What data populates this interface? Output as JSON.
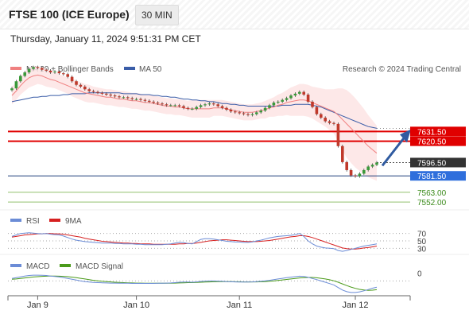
{
  "header": {
    "title": "FTSE 100 (ICE Europe)",
    "interval": "30 MIN"
  },
  "timestamp": "Thursday, January 11, 2024 9:51:31 PM CET",
  "credit": "Research © 2024 Trading Central",
  "colors": {
    "ma20": "#f08080",
    "ma50": "#3a5da8",
    "bands": "#fde4e4",
    "resistance": "#e00000",
    "support": "#62a830",
    "pivot": "#1f3f7a",
    "up_candle": "#3a9a3a",
    "down_candle": "#c0392b",
    "rsi": "#6b8cd6",
    "rsi_ma": "#d62020",
    "macd": "#6b8cd6",
    "macd_signal": "#4a9a1a",
    "arrow": "#2f5aa0"
  },
  "chart_data": [
    {
      "type": "candlestick",
      "legend": [
        "MA 20 + Bollinger Bands",
        "MA 50"
      ],
      "x_ticks": [
        "Jan 9",
        "Jan 10",
        "Jan 11",
        "Jan 12"
      ],
      "ylim": [
        7545,
        7690
      ],
      "current_price": "7596.50",
      "levels": [
        {
          "label": "7631.50",
          "value": 7631.5,
          "kind": "resistance"
        },
        {
          "label": "7620.50",
          "value": 7620.5,
          "kind": "resistance"
        },
        {
          "label": "7596.50",
          "value": 7596.5,
          "kind": "last"
        },
        {
          "label": "7581.50",
          "value": 7581.5,
          "kind": "pivot"
        },
        {
          "label": "7563.00",
          "value": 7563.0,
          "kind": "support"
        },
        {
          "label": "7552.00",
          "value": 7552.0,
          "kind": "support"
        }
      ],
      "closes": [
        7680,
        7688,
        7694,
        7698,
        7702,
        7704,
        7703,
        7701,
        7700,
        7698,
        7699,
        7697,
        7696,
        7693,
        7688,
        7684,
        7682,
        7679,
        7677,
        7676,
        7675,
        7674,
        7673,
        7672,
        7671,
        7670,
        7670,
        7669,
        7668,
        7668,
        7667,
        7666,
        7665,
        7664,
        7663,
        7662,
        7661,
        7661,
        7661,
        7660,
        7658,
        7657,
        7657,
        7659,
        7661,
        7662,
        7663,
        7662,
        7660,
        7658,
        7656,
        7654,
        7653,
        7652,
        7651,
        7650,
        7651,
        7653,
        7655,
        7658,
        7661,
        7664,
        7665,
        7667,
        7669,
        7672,
        7674,
        7676,
        7673,
        7665,
        7659,
        7651,
        7647,
        7643,
        7641,
        7640,
        7615,
        7597,
        7588,
        7582,
        7581,
        7584,
        7588,
        7592,
        7594,
        7596.5
      ],
      "ma20": [
        7672,
        7677,
        7683,
        7688,
        7692,
        7694,
        7695,
        7694,
        7692,
        7690,
        7689,
        7687,
        7685,
        7683,
        7681,
        7679,
        7677,
        7675,
        7674,
        7673,
        7672,
        7671,
        7670,
        7670,
        7669,
        7668,
        7668,
        7667,
        7666,
        7666,
        7665,
        7664,
        7664,
        7663,
        7662,
        7661,
        7660,
        7660,
        7659,
        7659,
        7658,
        7657,
        7657,
        7657,
        7657,
        7657,
        7657,
        7658,
        7658,
        7658,
        7657,
        7656,
        7655,
        7654,
        7653,
        7653,
        7653,
        7654,
        7655,
        7656,
        7658,
        7659,
        7661,
        7662,
        7664,
        7665,
        7666,
        7667,
        7667,
        7666,
        7664,
        7662,
        7660,
        7658,
        7656,
        7654,
        7650,
        7645,
        7640,
        7635,
        7630,
        7625,
        7620,
        7615,
        7611,
        7607
      ],
      "ma50": [
        7665,
        7666,
        7667,
        7668,
        7669,
        7670,
        7670,
        7671,
        7671,
        7672,
        7672,
        7672,
        7673,
        7673,
        7674,
        7674,
        7674,
        7674,
        7675,
        7675,
        7675,
        7675,
        7675,
        7675,
        7675,
        7675,
        7674,
        7674,
        7674,
        7674,
        7673,
        7673,
        7673,
        7672,
        7672,
        7671,
        7671,
        7670,
        7670,
        7669,
        7668,
        7668,
        7667,
        7667,
        7666,
        7666,
        7665,
        7665,
        7664,
        7663,
        7663,
        7662,
        7662,
        7661,
        7661,
        7660,
        7660,
        7660,
        7660,
        7660,
        7660,
        7660,
        7660,
        7661,
        7661,
        7661,
        7662,
        7662,
        7662,
        7662,
        7661,
        7660,
        7659,
        7657,
        7655,
        7653,
        7651,
        7649,
        7647,
        7645,
        7643,
        7641,
        7639,
        7637,
        7636,
        7635
      ],
      "bb_width": [
        10,
        10,
        10,
        11,
        11,
        11,
        10,
        10,
        10,
        9,
        9,
        9,
        9,
        9,
        10,
        10,
        10,
        10,
        10,
        9,
        9,
        9,
        9,
        9,
        9,
        9,
        9,
        9,
        9,
        9,
        9,
        9,
        9,
        9,
        9,
        9,
        9,
        9,
        9,
        9,
        9,
        9,
        10,
        10,
        10,
        10,
        10,
        9,
        9,
        9,
        9,
        9,
        9,
        9,
        9,
        9,
        9,
        9,
        9,
        10,
        10,
        11,
        12,
        13,
        14,
        16,
        17,
        18,
        18,
        18,
        18,
        19,
        20,
        21,
        23,
        25,
        30,
        35,
        38,
        39,
        39,
        38,
        37,
        35,
        33,
        31
      ]
    },
    {
      "type": "line",
      "legend": [
        "RSI",
        "9MA"
      ],
      "ylim": [
        20,
        80
      ],
      "reference_levels": [
        "70",
        "50",
        "30"
      ],
      "rsi": [
        62,
        66,
        70,
        71,
        72,
        71,
        70,
        69,
        70,
        68,
        67,
        66,
        63,
        59,
        55,
        52,
        50,
        48,
        47,
        46,
        45,
        44,
        44,
        44,
        43,
        43,
        42,
        42,
        42,
        41,
        41,
        40,
        40,
        40,
        40,
        40,
        41,
        42,
        44,
        46,
        45,
        43,
        42,
        48,
        54,
        56,
        56,
        55,
        53,
        51,
        49,
        48,
        47,
        47,
        46,
        46,
        47,
        50,
        52,
        55,
        58,
        60,
        62,
        63,
        64,
        65,
        67,
        70,
        62,
        50,
        42,
        36,
        33,
        31,
        30,
        29,
        24,
        22,
        24,
        27,
        30,
        33,
        36,
        38,
        40,
        42
      ],
      "ma9": [
        60,
        62,
        64,
        66,
        67,
        68,
        69,
        69,
        70,
        70,
        69,
        69,
        68,
        66,
        64,
        62,
        60,
        57,
        55,
        53,
        51,
        49,
        48,
        47,
        46,
        45,
        44,
        44,
        43,
        43,
        42,
        42,
        42,
        41,
        41,
        41,
        41,
        41,
        41,
        42,
        42,
        43,
        43,
        44,
        46,
        48,
        50,
        51,
        52,
        53,
        53,
        52,
        51,
        50,
        49,
        48,
        48,
        48,
        49,
        50,
        51,
        53,
        55,
        57,
        59,
        61,
        62,
        64,
        64,
        62,
        59,
        55,
        51,
        47,
        43,
        39,
        35,
        31,
        29,
        28,
        28,
        29,
        31,
        32,
        34,
        36
      ]
    },
    {
      "type": "line",
      "legend": [
        "MACD",
        "MACD Signal"
      ],
      "ylim": [
        -8,
        5
      ],
      "reference_levels": [
        "0"
      ],
      "macd": [
        1.5,
        2.0,
        2.5,
        3.0,
        3.3,
        3.5,
        3.5,
        3.4,
        3.3,
        3.0,
        2.7,
        2.4,
        2.0,
        1.5,
        1.0,
        0.5,
        0.0,
        -0.4,
        -0.7,
        -0.9,
        -1.0,
        -1.1,
        -1.2,
        -1.3,
        -1.3,
        -1.4,
        -1.4,
        -1.4,
        -1.5,
        -1.5,
        -1.5,
        -1.5,
        -1.5,
        -1.5,
        -1.4,
        -1.4,
        -1.3,
        -1.2,
        -1.0,
        -0.8,
        -0.7,
        -0.7,
        -0.8,
        -0.6,
        -0.3,
        -0.1,
        0.0,
        0.0,
        -0.1,
        -0.2,
        -0.4,
        -0.5,
        -0.6,
        -0.7,
        -0.7,
        -0.7,
        -0.6,
        -0.4,
        -0.2,
        0.1,
        0.4,
        0.8,
        1.2,
        1.6,
        2.0,
        2.3,
        2.6,
        2.9,
        2.7,
        2.2,
        1.5,
        0.8,
        0.0,
        -0.8,
        -1.6,
        -2.4,
        -4.0,
        -5.5,
        -6.5,
        -7.0,
        -7.0,
        -6.6,
        -6.0,
        -5.2,
        -4.4,
        -3.8
      ],
      "signal": [
        1.0,
        1.2,
        1.5,
        1.8,
        2.1,
        2.4,
        2.6,
        2.8,
        2.9,
        3.0,
        3.0,
        2.9,
        2.8,
        2.6,
        2.3,
        2.0,
        1.6,
        1.2,
        0.8,
        0.4,
        0.1,
        -0.2,
        -0.4,
        -0.6,
        -0.8,
        -0.9,
        -1.0,
        -1.1,
        -1.2,
        -1.3,
        -1.3,
        -1.4,
        -1.4,
        -1.4,
        -1.4,
        -1.4,
        -1.4,
        -1.4,
        -1.3,
        -1.2,
        -1.1,
        -1.0,
        -1.0,
        -0.9,
        -0.8,
        -0.7,
        -0.6,
        -0.5,
        -0.4,
        -0.4,
        -0.4,
        -0.4,
        -0.5,
        -0.5,
        -0.6,
        -0.6,
        -0.6,
        -0.6,
        -0.5,
        -0.4,
        -0.2,
        0.0,
        0.3,
        0.6,
        0.9,
        1.2,
        1.5,
        1.8,
        2.0,
        2.1,
        2.1,
        1.9,
        1.6,
        1.2,
        0.7,
        0.1,
        -0.8,
        -1.8,
        -2.8,
        -3.7,
        -4.5,
        -5.1,
        -5.5,
        -5.7,
        -5.6,
        -5.3
      ]
    }
  ]
}
